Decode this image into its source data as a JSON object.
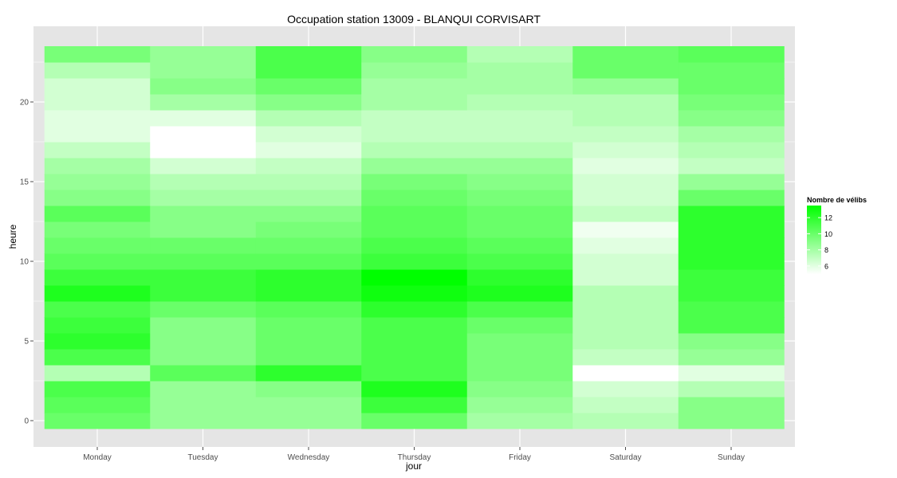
{
  "chart_data": {
    "type": "heatmap",
    "title": "Occupation station 13009 - BLANQUI CORVISART",
    "xlabel": "jour",
    "ylabel": "heure",
    "x_categories": [
      "Monday",
      "Tuesday",
      "Wednesday",
      "Thursday",
      "Friday",
      "Saturday",
      "Sunday"
    ],
    "y_hours": [
      0,
      1,
      2,
      3,
      4,
      5,
      6,
      7,
      8,
      9,
      10,
      11,
      12,
      13,
      14,
      15,
      16,
      17,
      18,
      19,
      20,
      21,
      22,
      23
    ],
    "y_ticks": [
      0,
      5,
      10,
      15,
      20
    ],
    "ylim": [
      -0.5,
      23.5
    ],
    "grid": true,
    "values": [
      [
        10.0,
        8.5,
        8.5,
        10.0,
        8.0,
        7.5,
        9.0
      ],
      [
        10.5,
        8.5,
        8.5,
        11.5,
        8.5,
        7.0,
        9.0
      ],
      [
        11.0,
        8.5,
        9.0,
        12.5,
        9.0,
        6.5,
        7.5
      ],
      [
        7.5,
        10.5,
        12.0,
        11.0,
        9.5,
        5.0,
        6.0
      ],
      [
        11.0,
        9.0,
        10.0,
        11.0,
        9.5,
        7.0,
        8.5
      ],
      [
        12.0,
        9.0,
        10.0,
        11.0,
        9.5,
        7.5,
        9.0
      ],
      [
        11.5,
        9.0,
        10.0,
        11.0,
        10.0,
        7.5,
        11.0
      ],
      [
        11.0,
        10.0,
        10.5,
        12.0,
        11.0,
        7.5,
        11.0
      ],
      [
        12.5,
        11.5,
        12.0,
        13.0,
        12.5,
        7.5,
        11.5
      ],
      [
        11.5,
        11.5,
        12.0,
        13.5,
        12.0,
        6.5,
        11.5
      ],
      [
        10.5,
        10.5,
        10.5,
        11.5,
        11.0,
        6.5,
        12.0
      ],
      [
        10.0,
        10.0,
        10.0,
        11.0,
        10.5,
        6.0,
        12.0
      ],
      [
        9.5,
        9.0,
        9.5,
        10.5,
        10.0,
        5.5,
        12.0
      ],
      [
        10.5,
        9.0,
        9.0,
        10.5,
        10.0,
        7.0,
        12.0
      ],
      [
        9.0,
        8.0,
        8.0,
        10.0,
        9.5,
        6.5,
        10.0
      ],
      [
        8.5,
        7.5,
        7.5,
        9.5,
        9.0,
        6.5,
        8.5
      ],
      [
        8.0,
        6.5,
        7.0,
        8.5,
        8.5,
        6.0,
        7.0
      ],
      [
        7.0,
        5.0,
        6.0,
        7.5,
        7.5,
        6.5,
        7.5
      ],
      [
        6.0,
        5.0,
        6.5,
        7.0,
        7.0,
        7.0,
        8.0
      ],
      [
        6.0,
        6.0,
        7.5,
        7.0,
        7.0,
        7.5,
        9.0
      ],
      [
        6.5,
        8.0,
        9.0,
        8.0,
        7.5,
        7.5,
        9.5
      ],
      [
        6.5,
        9.0,
        10.0,
        8.0,
        8.0,
        8.5,
        10.0
      ],
      [
        7.5,
        8.5,
        11.0,
        8.5,
        8.0,
        10.0,
        10.0
      ],
      [
        9.5,
        8.5,
        11.0,
        9.0,
        7.5,
        10.0,
        10.5
      ]
    ],
    "legend": {
      "title": "Nombre de vélibs",
      "ticks": [
        6,
        8,
        10,
        12
      ],
      "range": [
        5,
        13.5
      ],
      "low_color": "#ffffff",
      "high_color": "#00ff00",
      "placement": "right"
    },
    "panel_background": "#e5e5e5",
    "grid_color": "#ffffff"
  }
}
